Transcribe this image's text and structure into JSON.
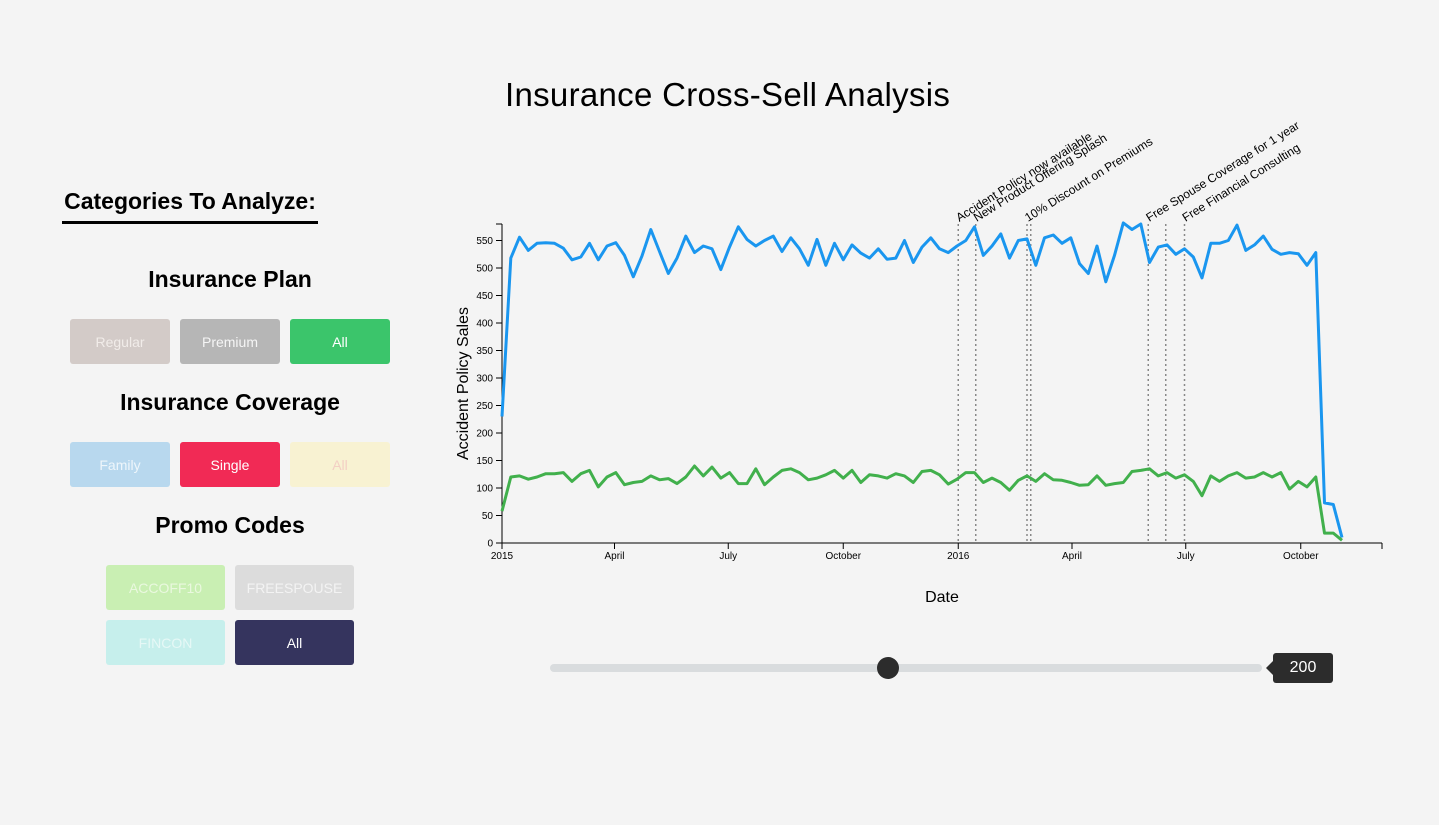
{
  "page": {
    "title": "Insurance Cross-Sell Analysis"
  },
  "sidebar": {
    "heading": "Categories To Analyze:",
    "plan": {
      "title": "Insurance Plan",
      "buttons": [
        {
          "label": "Regular",
          "color": "#d3cbc8",
          "text_color": "#f1ece9"
        },
        {
          "label": "Premium",
          "color": "#b6b6b6",
          "text_color": "#f5f5f5"
        },
        {
          "label": "All",
          "color": "#3bc56b",
          "text_color": "#ffffff"
        }
      ]
    },
    "coverage": {
      "title": "Insurance Coverage",
      "buttons": [
        {
          "label": "Family",
          "color": "#b8d8ee",
          "text_color": "#eef6fb"
        },
        {
          "label": "Single",
          "color": "#f12a55",
          "text_color": "#ffffff"
        },
        {
          "label": "All",
          "color": "#f8f2d2",
          "text_color": "#f3cfc4"
        }
      ]
    },
    "promo": {
      "title": "Promo Codes",
      "buttons": [
        {
          "label": "ACCOFF10",
          "color": "#c9efb3",
          "text_color": "#eaf8df"
        },
        {
          "label": "FREESPOUSE",
          "color": "#dcdcdc",
          "text_color": "#f3f3f3"
        },
        {
          "label": "FINCON",
          "color": "#c6efec",
          "text_color": "#e6f8f6"
        },
        {
          "label": "All",
          "color": "#35345e",
          "text_color": "#ffffff"
        }
      ]
    }
  },
  "slider": {
    "value": "200",
    "fraction": 0.475
  },
  "chart_data": {
    "type": "line",
    "xlabel": "Date",
    "ylabel": "Accident Policy Sales",
    "ylim": [
      0,
      580
    ],
    "yticks": [
      0,
      50,
      100,
      150,
      200,
      250,
      300,
      350,
      400,
      450,
      500,
      550
    ],
    "xlim": [
      "2015-01-01",
      "2016-12-05"
    ],
    "xticks": [
      {
        "date": "2015-01-01",
        "label": "2015"
      },
      {
        "date": "2015-04-01",
        "label": "April"
      },
      {
        "date": "2015-07-01",
        "label": "July"
      },
      {
        "date": "2015-10-01",
        "label": "October"
      },
      {
        "date": "2016-01-01",
        "label": "2016"
      },
      {
        "date": "2016-04-01",
        "label": "April"
      },
      {
        "date": "2016-07-01",
        "label": "July"
      },
      {
        "date": "2016-10-01",
        "label": "October"
      }
    ],
    "series": [
      {
        "color": "#1a96ef",
        "x_start": "2015-01-01",
        "x_step_days": 7,
        "values": [
          230,
          518,
          556,
          532,
          545,
          546,
          545,
          536,
          515,
          520,
          545,
          515,
          540,
          546,
          523,
          484,
          522,
          570,
          530,
          490,
          518,
          558,
          528,
          540,
          535,
          497,
          538,
          575,
          552,
          540,
          550,
          558,
          530,
          555,
          535,
          505,
          552,
          505,
          545,
          515,
          542,
          527,
          518,
          535,
          516,
          518,
          550,
          510,
          538,
          555,
          535,
          528,
          540,
          550,
          575,
          523,
          540,
          562,
          518,
          550,
          553,
          505,
          555,
          560,
          545,
          555,
          508,
          490,
          540,
          475,
          523,
          582,
          570,
          580,
          510,
          538,
          542,
          525,
          535,
          520,
          482,
          545,
          545,
          550,
          578,
          532,
          542,
          558,
          534,
          525,
          528,
          526,
          505,
          528,
          73,
          70,
          10
        ]
      },
      {
        "color": "#41b04c",
        "x_start": "2015-01-01",
        "x_step_days": 7,
        "values": [
          58,
          120,
          122,
          116,
          120,
          126,
          126,
          128,
          112,
          126,
          132,
          102,
          120,
          128,
          106,
          110,
          112,
          122,
          115,
          117,
          108,
          120,
          140,
          122,
          138,
          118,
          128,
          108,
          108,
          135,
          106,
          120,
          132,
          135,
          128,
          115,
          118,
          124,
          132,
          118,
          132,
          110,
          124,
          122,
          118,
          126,
          122,
          110,
          130,
          132,
          124,
          107,
          116,
          128,
          128,
          110,
          118,
          110,
          96,
          114,
          122,
          112,
          126,
          115,
          114,
          110,
          105,
          106,
          122,
          105,
          108,
          110,
          130,
          132,
          135,
          122,
          128,
          118,
          124,
          112,
          86,
          122,
          112,
          122,
          128,
          118,
          120,
          128,
          120,
          128,
          98,
          112,
          102,
          120,
          18,
          18,
          5
        ]
      }
    ],
    "annotations": [
      {
        "date": "2016-01-01",
        "label": "Accident Policy now available"
      },
      {
        "date": "2016-01-15",
        "label": "New Product Offering Splash"
      },
      {
        "date": "2016-02-25",
        "label": "10% Discount on Premiums"
      },
      {
        "date": "2016-02-28",
        "label": ""
      },
      {
        "date": "2016-06-01",
        "label": "Free Spouse Coverage for 1 year"
      },
      {
        "date": "2016-06-15",
        "label": ""
      },
      {
        "date": "2016-06-30",
        "label": "Free Financial Consulting"
      }
    ]
  }
}
